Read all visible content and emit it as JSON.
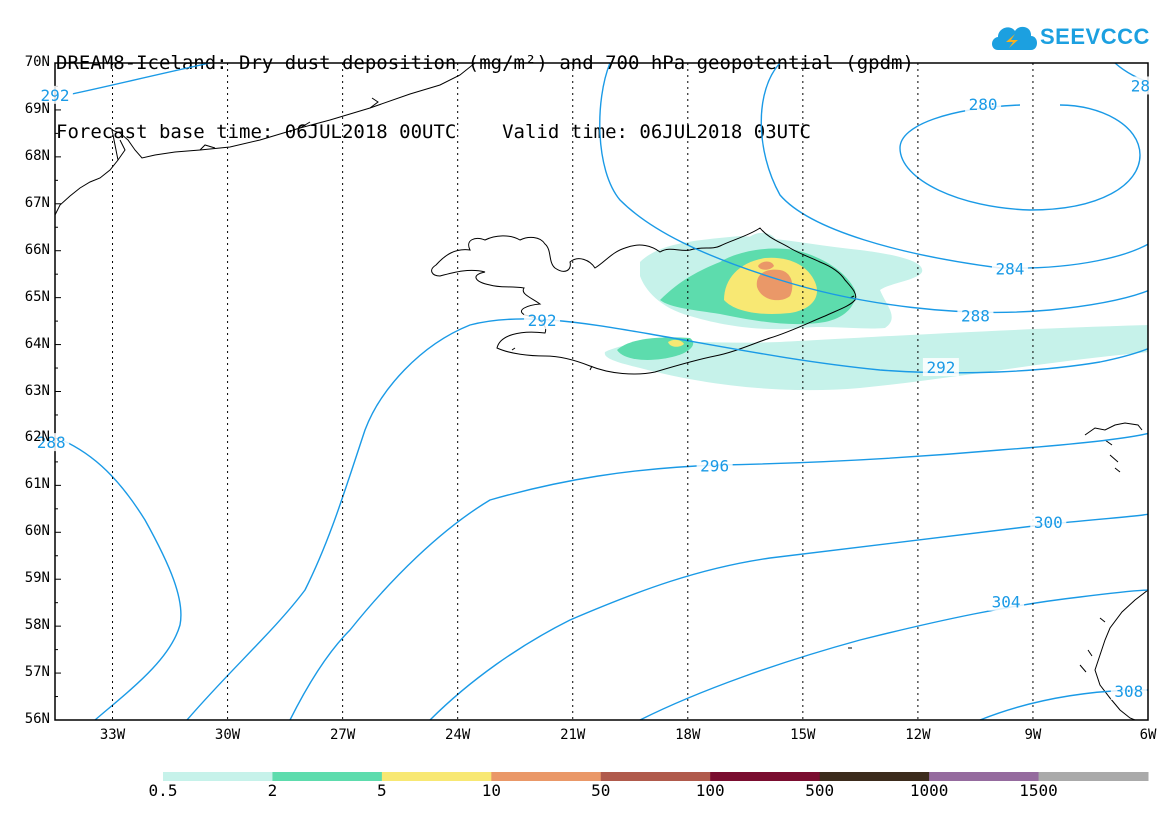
{
  "title": {
    "line1": "DREAM8-Iceland: Dry dust deposition (mg/m²) and 700 hPa geopotential (gpdm)",
    "line2": "Forecast base time: 06JUL2018 00UTC    Valid time: 06JUL2018 03UTC"
  },
  "logo": {
    "text": "SEEVCCC",
    "color": "#1ca0e0"
  },
  "map": {
    "lon_range": [
      -34.5,
      -6
    ],
    "lat_range": [
      56,
      70
    ],
    "lat_labels": [
      "70N",
      "69N",
      "68N",
      "67N",
      "66N",
      "65N",
      "64N",
      "63N",
      "62N",
      "61N",
      "60N",
      "59N",
      "58N",
      "57N",
      "56N"
    ],
    "lon_labels": [
      "33W",
      "30W",
      "27W",
      "24W",
      "21W",
      "18W",
      "15W",
      "12W",
      "9W",
      "6W"
    ],
    "contour_color": "#1a9ae6",
    "contour_labels": [
      {
        "text": "292",
        "lon": -34.5,
        "lat": 69.3
      },
      {
        "text": "28",
        "lon": -6.2,
        "lat": 69.5
      },
      {
        "text": "280",
        "lon": -10.3,
        "lat": 69.1
      },
      {
        "text": "284",
        "lon": -9.6,
        "lat": 65.6
      },
      {
        "text": "288",
        "lon": -10.5,
        "lat": 64.6
      },
      {
        "text": "292",
        "lon": -21.8,
        "lat": 64.5
      },
      {
        "text": "292",
        "lon": -11.4,
        "lat": 63.5
      },
      {
        "text": "296",
        "lon": -17.3,
        "lat": 61.4
      },
      {
        "text": "300",
        "lon": -8.6,
        "lat": 60.2
      },
      {
        "text": "304",
        "lon": -9.7,
        "lat": 58.5
      },
      {
        "text": "288",
        "lon": -34.6,
        "lat": 61.9
      },
      {
        "text": "308",
        "lon": -6.5,
        "lat": 56.6
      }
    ]
  },
  "legend": {
    "colors": [
      "#c6f2ea",
      "#5ddcad",
      "#f8e873",
      "#ea9868",
      "#b05a4c",
      "#7a0d2f",
      "#3c2b1c",
      "#956b9e",
      "#aaaaaa"
    ],
    "labels": [
      "0.5",
      "2",
      "5",
      "10",
      "50",
      "100",
      "500",
      "1000",
      "1500"
    ]
  }
}
